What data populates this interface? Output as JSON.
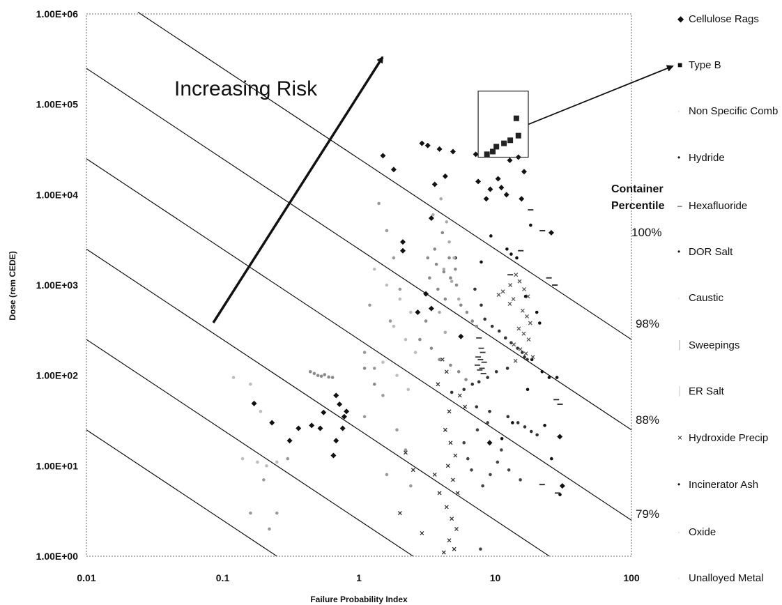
{
  "chart_data": {
    "type": "scatter",
    "xlabel": "Failure Probability Index",
    "ylabel": "Dose (rem CEDE)",
    "xscale": "log",
    "yscale": "log",
    "xlim": [
      0.01,
      100
    ],
    "ylim": [
      1,
      1000000
    ],
    "x_ticks": [
      "0.01",
      "0.1",
      "1",
      "10",
      "100"
    ],
    "y_ticks": [
      "1.00E+00",
      "1.00E+01",
      "1.00E+02",
      "1.00E+03",
      "1.00E+04",
      "1.00E+05",
      "1.00E+06"
    ],
    "grid": false,
    "legend_position": "right",
    "annotation": "Increasing Risk",
    "percentile_title": [
      "Container",
      "Percentile"
    ],
    "percentile_labels": [
      {
        "label": "100%",
        "x": 100,
        "y": 3000
      },
      {
        "label": "98%",
        "x": 100,
        "y": 300
      },
      {
        "label": "88%",
        "x": 100,
        "y": 30
      },
      {
        "label": "79%",
        "x": 100,
        "y": 3
      }
    ],
    "risk_contours": [
      {
        "k": 0.25
      },
      {
        "k": 2.5
      },
      {
        "k": 25
      },
      {
        "k": 250
      },
      {
        "k": 2500
      },
      {
        "k": 25000
      }
    ],
    "series": [
      {
        "name": "Cellulose Rags",
        "marker": "diamond",
        "color": "#111111",
        "points": [
          [
            1.5,
            27000
          ],
          [
            2.9,
            37000
          ],
          [
            3.2,
            35000
          ],
          [
            3.9,
            32000
          ],
          [
            4.9,
            30000
          ],
          [
            7.2,
            28000
          ],
          [
            7.5,
            14000
          ],
          [
            8.6,
            9000
          ],
          [
            9.2,
            11500
          ],
          [
            10.5,
            15000
          ],
          [
            11.1,
            12000
          ],
          [
            12.1,
            10000
          ],
          [
            12.8,
            24000
          ],
          [
            14.8,
            26000
          ],
          [
            16.3,
            18000
          ],
          [
            15.6,
            9000
          ],
          [
            4.3,
            16000
          ],
          [
            3.6,
            13000
          ],
          [
            3.4,
            5500
          ],
          [
            1.8,
            19000
          ],
          [
            2.1,
            3000
          ],
          [
            2.1,
            2400
          ],
          [
            25.8,
            3800
          ],
          [
            3.1,
            800
          ],
          [
            2.7,
            500
          ],
          [
            3.4,
            550
          ],
          [
            0.17,
            49
          ],
          [
            0.23,
            30
          ],
          [
            0.31,
            19
          ],
          [
            0.36,
            26
          ],
          [
            0.45,
            28
          ],
          [
            0.52,
            26
          ],
          [
            0.55,
            39
          ],
          [
            0.68,
            60
          ],
          [
            0.72,
            48
          ],
          [
            0.78,
            35
          ],
          [
            0.68,
            19
          ],
          [
            0.65,
            13
          ],
          [
            0.76,
            26
          ],
          [
            0.81,
            40
          ],
          [
            9.1,
            18
          ],
          [
            29.8,
            21
          ],
          [
            31.1,
            6
          ],
          [
            5.6,
            270
          ]
        ]
      },
      {
        "name": "Type B",
        "marker": "square",
        "color": "#222222",
        "points": [
          [
            14.3,
            70000
          ],
          [
            14.8,
            45000
          ],
          [
            12.9,
            40000
          ],
          [
            11.6,
            37000
          ],
          [
            10.2,
            34000
          ],
          [
            9.6,
            30000
          ],
          [
            8.7,
            28000
          ]
        ]
      },
      {
        "name": "Non Specific Comb",
        "marker": "dot",
        "color": "#9a9a9a",
        "points": [
          [
            1.4,
            8000
          ],
          [
            1.6,
            4000
          ],
          [
            1.8,
            2000
          ],
          [
            2.0,
            900
          ],
          [
            1.7,
            400
          ],
          [
            1.2,
            600
          ],
          [
            1.1,
            180
          ],
          [
            1.3,
            120
          ],
          [
            1.5,
            60
          ],
          [
            1.1,
            35
          ],
          [
            1.9,
            25
          ],
          [
            2.2,
            15
          ],
          [
            1.6,
            8
          ],
          [
            2.4,
            6
          ],
          [
            0.2,
            7
          ],
          [
            0.3,
            12
          ],
          [
            0.25,
            3
          ],
          [
            0.16,
            3
          ],
          [
            0.22,
            2
          ]
        ]
      },
      {
        "name": "Hydride",
        "marker": "dot",
        "color": "#111111",
        "points": [
          [
            5.1,
            2000
          ],
          [
            7.9,
            1800
          ],
          [
            9.3,
            3500
          ],
          [
            12.2,
            2500
          ],
          [
            13.1,
            2200
          ],
          [
            14.4,
            2000
          ],
          [
            18.2,
            4600
          ],
          [
            16.7,
            750
          ],
          [
            20.2,
            500
          ],
          [
            21.2,
            380
          ],
          [
            18.6,
            150
          ],
          [
            22.1,
            110
          ],
          [
            24.9,
            95
          ],
          [
            28.4,
            95
          ],
          [
            17.3,
            70
          ],
          [
            13.4,
            30
          ],
          [
            11.2,
            20
          ],
          [
            25.9,
            12
          ],
          [
            29.9,
            4.8
          ],
          [
            23.1,
            28
          ]
        ]
      },
      {
        "name": "Hexafluoride",
        "marker": "dash",
        "color": "#222222",
        "points": [
          [
            18.2,
            6800
          ],
          [
            22.2,
            4000
          ],
          [
            24.8,
            1200
          ],
          [
            27.4,
            1000
          ],
          [
            15.4,
            2400
          ],
          [
            12.9,
            1300
          ],
          [
            28.1,
            54
          ],
          [
            29.9,
            48
          ],
          [
            22.1,
            6.2
          ],
          [
            28.7,
            5
          ]
        ]
      },
      {
        "name": "DOR Salt",
        "marker": "dot",
        "color": "#333333",
        "points": [
          [
            7.1,
            900
          ],
          [
            7.9,
            600
          ],
          [
            8.4,
            420
          ],
          [
            9.5,
            350
          ],
          [
            10.7,
            310
          ],
          [
            11.9,
            260
          ],
          [
            13.1,
            230
          ],
          [
            14.6,
            200
          ],
          [
            15.8,
            180
          ],
          [
            16.4,
            160
          ],
          [
            17.2,
            150
          ],
          [
            12.3,
            120
          ],
          [
            10.2,
            110
          ],
          [
            8.8,
            95
          ],
          [
            7.6,
            85
          ],
          [
            6.8,
            80
          ],
          [
            5.9,
            70
          ],
          [
            4.8,
            65
          ],
          [
            7.3,
            45
          ],
          [
            9.1,
            40
          ],
          [
            12.4,
            35
          ],
          [
            14.7,
            30
          ],
          [
            16.5,
            27
          ],
          [
            18.4,
            24
          ],
          [
            20.3,
            22
          ]
        ]
      },
      {
        "name": "Caustic",
        "marker": "dot",
        "color": "#aaaaaa",
        "points": [
          [
            3.5,
            6000
          ],
          [
            4.0,
            9000
          ],
          [
            4.4,
            5000
          ],
          [
            4.6,
            3000
          ],
          [
            5.0,
            2000
          ],
          [
            4.2,
            1500
          ],
          [
            4.8,
            1100
          ],
          [
            5.4,
            700
          ],
          [
            3.9,
            500
          ],
          [
            4.3,
            300
          ]
        ]
      },
      {
        "name": "Sweepings",
        "marker": "x",
        "color": "#555555",
        "points": [
          [
            14.2,
            1300
          ],
          [
            15.1,
            1100
          ],
          [
            16.3,
            900
          ],
          [
            17.4,
            750
          ],
          [
            13.6,
            700
          ],
          [
            12.8,
            620
          ],
          [
            15.9,
            520
          ],
          [
            17.1,
            450
          ],
          [
            18.1,
            380
          ],
          [
            14.9,
            330
          ],
          [
            16.2,
            290
          ],
          [
            17.6,
            250
          ],
          [
            13.7,
            220
          ],
          [
            15.3,
            195
          ],
          [
            16.8,
            175
          ],
          [
            18.9,
            160
          ],
          [
            14.1,
            145
          ],
          [
            12.9,
            1000
          ],
          [
            11.4,
            850
          ],
          [
            10.6,
            780
          ]
        ]
      },
      {
        "name": "ER Salt",
        "marker": "dash",
        "color": "#333333",
        "points": [
          [
            7.6,
            260
          ],
          [
            7.9,
            200
          ],
          [
            8.1,
            180
          ],
          [
            7.5,
            160
          ],
          [
            7.8,
            150
          ],
          [
            8.3,
            140
          ],
          [
            7.4,
            130
          ],
          [
            8.0,
            120
          ],
          [
            7.7,
            115
          ],
          [
            8.2,
            105
          ]
        ]
      },
      {
        "name": "Hydroxide Precip",
        "marker": "x",
        "color": "#333333",
        "points": [
          [
            4.3,
            25
          ],
          [
            4.7,
            18
          ],
          [
            5.1,
            13
          ],
          [
            4.5,
            10
          ],
          [
            4.9,
            7
          ],
          [
            5.3,
            5
          ],
          [
            4.4,
            3.5
          ],
          [
            4.8,
            2.6
          ],
          [
            5.2,
            2
          ],
          [
            4.6,
            1.5
          ],
          [
            5.0,
            1.2
          ],
          [
            4.2,
            1.1
          ],
          [
            3.6,
            8
          ],
          [
            3.9,
            5
          ],
          [
            2.2,
            14
          ],
          [
            2.5,
            9
          ],
          [
            2.0,
            3
          ],
          [
            2.9,
            1.8
          ],
          [
            4.1,
            150
          ],
          [
            4.4,
            110
          ],
          [
            3.8,
            80
          ],
          [
            5.5,
            60
          ],
          [
            6.0,
            45
          ],
          [
            4.6,
            40
          ]
        ]
      },
      {
        "name": "Incinerator Ash",
        "marker": "dot",
        "color": "#444444",
        "points": [
          [
            8.1,
            6
          ],
          [
            9.2,
            8
          ],
          [
            10.4,
            11
          ],
          [
            11.1,
            15
          ],
          [
            6.7,
            9
          ],
          [
            6.3,
            12
          ],
          [
            5.9,
            18
          ],
          [
            7.4,
            25
          ],
          [
            8.8,
            30
          ],
          [
            12.6,
            9
          ],
          [
            15.3,
            7
          ],
          [
            7.8,
            1.2
          ]
        ]
      },
      {
        "name": "Oxide",
        "marker": "dot",
        "color": "#8a8a8a",
        "points": [
          [
            3.6,
            2500
          ],
          [
            4.1,
            3800
          ],
          [
            4.6,
            2000
          ],
          [
            5.1,
            1500
          ],
          [
            3.3,
            1200
          ],
          [
            3.8,
            900
          ],
          [
            4.3,
            700
          ],
          [
            5.6,
            600
          ],
          [
            6.2,
            500
          ],
          [
            6.8,
            400
          ],
          [
            7.3,
            350
          ],
          [
            3.1,
            400
          ],
          [
            2.8,
            250
          ],
          [
            3.4,
            200
          ],
          [
            3.9,
            150
          ],
          [
            4.7,
            130
          ],
          [
            5.4,
            110
          ],
          [
            6.1,
            90
          ],
          [
            0.44,
            110
          ],
          [
            0.47,
            105
          ],
          [
            0.5,
            100
          ],
          [
            0.53,
            98
          ],
          [
            0.56,
            102
          ],
          [
            0.6,
            96
          ],
          [
            0.64,
            95
          ],
          [
            1.1,
            120
          ],
          [
            1.3,
            80
          ],
          [
            3.2,
            2000
          ],
          [
            3.7,
            1700
          ],
          [
            4.2,
            1400
          ],
          [
            4.7,
            1200
          ],
          [
            5.2,
            1000
          ]
        ]
      },
      {
        "name": "Unalloyed Metal",
        "marker": "dot",
        "color": "#bdbdbd",
        "points": [
          [
            1.3,
            1500
          ],
          [
            1.6,
            1000
          ],
          [
            2.0,
            700
          ],
          [
            2.4,
            500
          ],
          [
            1.8,
            350
          ],
          [
            2.2,
            250
          ],
          [
            2.6,
            180
          ],
          [
            1.5,
            140
          ],
          [
            1.9,
            100
          ],
          [
            2.3,
            70
          ],
          [
            0.14,
            12
          ],
          [
            0.18,
            11
          ],
          [
            0.21,
            10
          ],
          [
            0.25,
            11
          ],
          [
            0.12,
            95
          ],
          [
            0.16,
            80
          ],
          [
            0.19,
            40
          ]
        ]
      }
    ]
  }
}
